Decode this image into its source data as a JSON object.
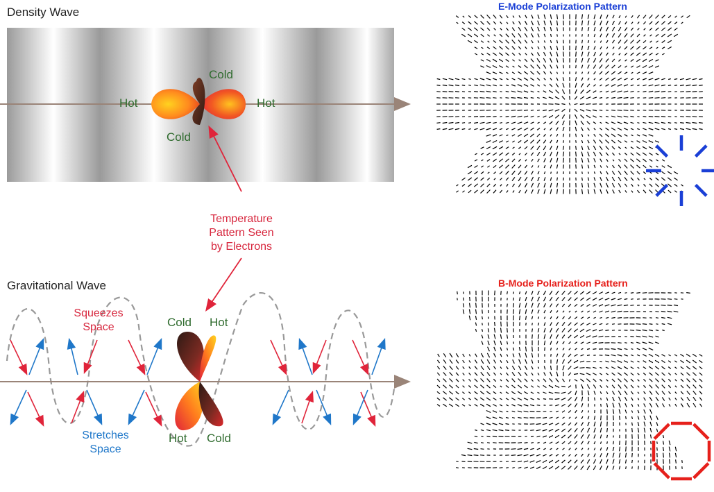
{
  "density": {
    "title": "Density Wave",
    "hot_left": "Hot",
    "hot_right": "Hot",
    "cold_top": "Cold",
    "cold_bottom": "Cold"
  },
  "callout": {
    "line1": "Temperature",
    "line2": "Pattern Seen",
    "line3": "by Electrons"
  },
  "gravitational": {
    "title": "Gravitational Wave",
    "squeezes_1": "Squeezes",
    "squeezes_2": "Space",
    "stretches_1": "Stretches",
    "stretches_2": "Space",
    "cold_top": "Cold",
    "hot_top": "Hot",
    "hot_bottom": "Hot",
    "cold_bottom": "Cold"
  },
  "emode": {
    "title": "E-Mode Polarization Pattern",
    "color": "#1a3fd6"
  },
  "bmode": {
    "title": "B-Mode Polarization Pattern",
    "color": "#e6201b"
  },
  "colors": {
    "axis": "#9a8478",
    "red_arrow": "#e0243a",
    "blue_arrow": "#1f77c9",
    "wave": "#999999"
  }
}
